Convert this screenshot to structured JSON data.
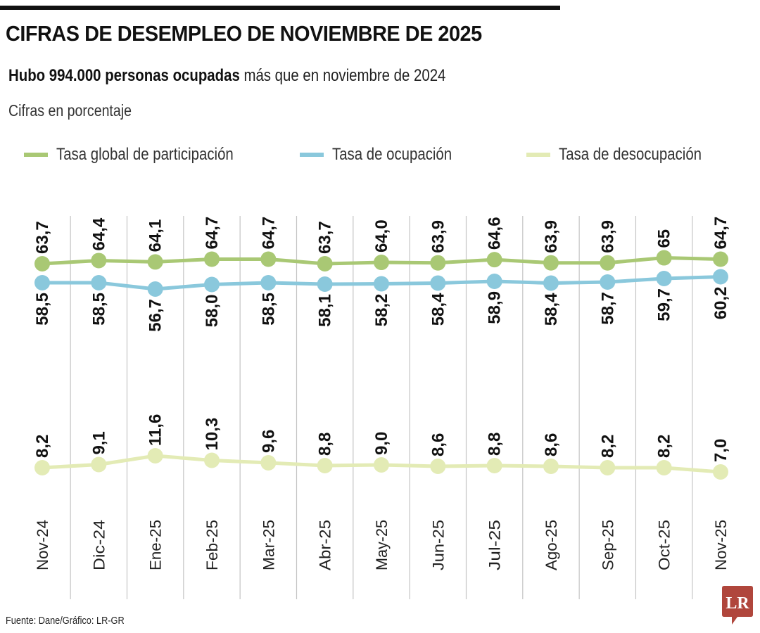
{
  "header": {
    "title": "CIFRAS DE DESEMPLEO DE NOVIEMBRE DE 2025",
    "subtitle_bold": "Hubo 994.000 personas ocupadas",
    "subtitle_rest": " más que en noviembre de 2024",
    "unit_note": "Cifras en porcentaje"
  },
  "footer": {
    "source": "Fuente: Dane/Gráfico: LR-GR",
    "logo_text": "LR"
  },
  "colors": {
    "participacion": "#a9c874",
    "ocupacion": "#8ac8dc",
    "desocupacion": "#e3ebb5",
    "grid": "#c4c4c4",
    "logo": "#b0463c"
  },
  "chart_data": {
    "type": "line",
    "title": "CIFRAS DE DESEMPLEO DE NOVIEMBRE DE 2025",
    "ylabel": "Cifras en porcentaje",
    "legend_position": "top",
    "grid": "vertical",
    "categories": [
      "Nov-24",
      "Dic-24",
      "Ene-25",
      "Feb-25",
      "Mar-25",
      "Abr-25",
      "May-25",
      "Jun-25",
      "Jul-25",
      "Ago-25",
      "Sep-25",
      "Oct-25",
      "Nov-25"
    ],
    "series": [
      {
        "name": "Tasa global de participación",
        "values": [
          63.7,
          64.4,
          64.1,
          64.7,
          64.7,
          63.7,
          64.0,
          63.9,
          64.6,
          63.9,
          63.9,
          65,
          64.7
        ],
        "labels": [
          "63,7",
          "64,4",
          "64,1",
          "64,7",
          "64,7",
          "63,7",
          "64,0",
          "63,9",
          "64,6",
          "63,9",
          "63,9",
          "65",
          "64,7"
        ]
      },
      {
        "name": "Tasa de ocupación",
        "values": [
          58.5,
          58.5,
          56.7,
          58.0,
          58.5,
          58.1,
          58.2,
          58.4,
          58.9,
          58.4,
          58.7,
          59.7,
          60.2
        ],
        "labels": [
          "58,5",
          "58,5",
          "56,7",
          "58,0",
          "58,5",
          "58,1",
          "58,2",
          "58,4",
          "58,9",
          "58,4",
          "58,7",
          "59,7",
          "60,2"
        ]
      },
      {
        "name": "Tasa de desocupación",
        "values": [
          8.2,
          9.1,
          11.6,
          10.3,
          9.6,
          8.8,
          9.0,
          8.6,
          8.8,
          8.6,
          8.2,
          8.2,
          7.0
        ],
        "labels": [
          "8,2",
          "9,1",
          "11,6",
          "10,3",
          "9,6",
          "8,8",
          "9,0",
          "8,6",
          "8,8",
          "8,6",
          "8,2",
          "8,2",
          "7,0"
        ]
      }
    ]
  }
}
